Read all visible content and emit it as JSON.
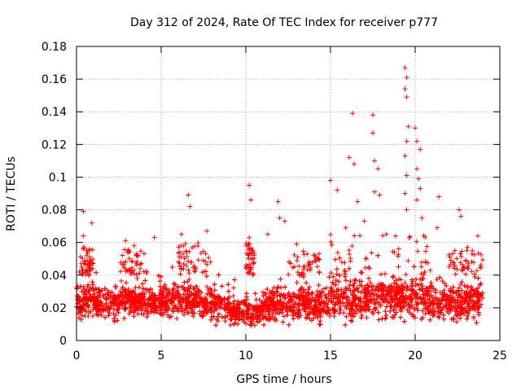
{
  "chart_data": {
    "type": "scatter",
    "title": "Day 312 of 2024, Rate Of TEC Index for receiver p777",
    "xlabel": "GPS time / hours",
    "ylabel": "ROTI / TECUs",
    "xlim": [
      0,
      25
    ],
    "ylim": [
      0,
      0.18
    ],
    "xticks": [
      0,
      5,
      10,
      15,
      20,
      25
    ],
    "yticks": [
      0,
      0.02,
      0.04,
      0.06,
      0.08,
      0.1,
      0.12,
      0.14,
      0.16,
      0.18
    ],
    "xtick_labels": [
      "0",
      "5",
      "10",
      "15",
      "20",
      "25"
    ],
    "ytick_labels": [
      "0",
      "0.02",
      "0.04",
      "0.06",
      "0.08",
      "0.1",
      "0.12",
      "0.14",
      "0.16",
      "0.18"
    ],
    "grid": true,
    "marker": "+",
    "color": "#ff0000",
    "notable_points": [
      {
        "x": 0.4,
        "y": 0.079
      },
      {
        "x": 0.4,
        "y": 0.064
      },
      {
        "x": 0.9,
        "y": 0.072
      },
      {
        "x": 2.9,
        "y": 0.061
      },
      {
        "x": 3.4,
        "y": 0.058
      },
      {
        "x": 4.6,
        "y": 0.063
      },
      {
        "x": 6.2,
        "y": 0.065
      },
      {
        "x": 6.6,
        "y": 0.089
      },
      {
        "x": 6.7,
        "y": 0.082
      },
      {
        "x": 7.7,
        "y": 0.067
      },
      {
        "x": 10.2,
        "y": 0.095
      },
      {
        "x": 10.3,
        "y": 0.086
      },
      {
        "x": 10.2,
        "y": 0.063
      },
      {
        "x": 11.3,
        "y": 0.065
      },
      {
        "x": 11.9,
        "y": 0.085
      },
      {
        "x": 12.0,
        "y": 0.075
      },
      {
        "x": 12.3,
        "y": 0.073
      },
      {
        "x": 13.0,
        "y": 0.059
      },
      {
        "x": 15.0,
        "y": 0.098
      },
      {
        "x": 15.4,
        "y": 0.092
      },
      {
        "x": 15.9,
        "y": 0.069
      },
      {
        "x": 16.1,
        "y": 0.112
      },
      {
        "x": 16.3,
        "y": 0.139
      },
      {
        "x": 16.4,
        "y": 0.108
      },
      {
        "x": 16.6,
        "y": 0.085
      },
      {
        "x": 17.0,
        "y": 0.073
      },
      {
        "x": 17.5,
        "y": 0.138
      },
      {
        "x": 17.5,
        "y": 0.127
      },
      {
        "x": 17.6,
        "y": 0.11
      },
      {
        "x": 17.6,
        "y": 0.091
      },
      {
        "x": 17.8,
        "y": 0.105
      },
      {
        "x": 17.9,
        "y": 0.089
      },
      {
        "x": 18.3,
        "y": 0.065
      },
      {
        "x": 19.4,
        "y": 0.167
      },
      {
        "x": 19.5,
        "y": 0.161
      },
      {
        "x": 19.4,
        "y": 0.154
      },
      {
        "x": 19.5,
        "y": 0.149
      },
      {
        "x": 19.6,
        "y": 0.131
      },
      {
        "x": 19.5,
        "y": 0.122
      },
      {
        "x": 19.4,
        "y": 0.113
      },
      {
        "x": 19.5,
        "y": 0.101
      },
      {
        "x": 19.4,
        "y": 0.09
      },
      {
        "x": 19.5,
        "y": 0.08
      },
      {
        "x": 20.0,
        "y": 0.13
      },
      {
        "x": 20.1,
        "y": 0.122
      },
      {
        "x": 20.3,
        "y": 0.117
      },
      {
        "x": 20.1,
        "y": 0.105
      },
      {
        "x": 20.2,
        "y": 0.099
      },
      {
        "x": 20.3,
        "y": 0.093
      },
      {
        "x": 20.1,
        "y": 0.086
      },
      {
        "x": 20.4,
        "y": 0.075
      },
      {
        "x": 21.4,
        "y": 0.088
      },
      {
        "x": 21.3,
        "y": 0.069
      },
      {
        "x": 22.6,
        "y": 0.08
      },
      {
        "x": 22.7,
        "y": 0.076
      },
      {
        "x": 23.7,
        "y": 0.064
      },
      {
        "x": 23.1,
        "y": 0.057
      }
    ]
  }
}
